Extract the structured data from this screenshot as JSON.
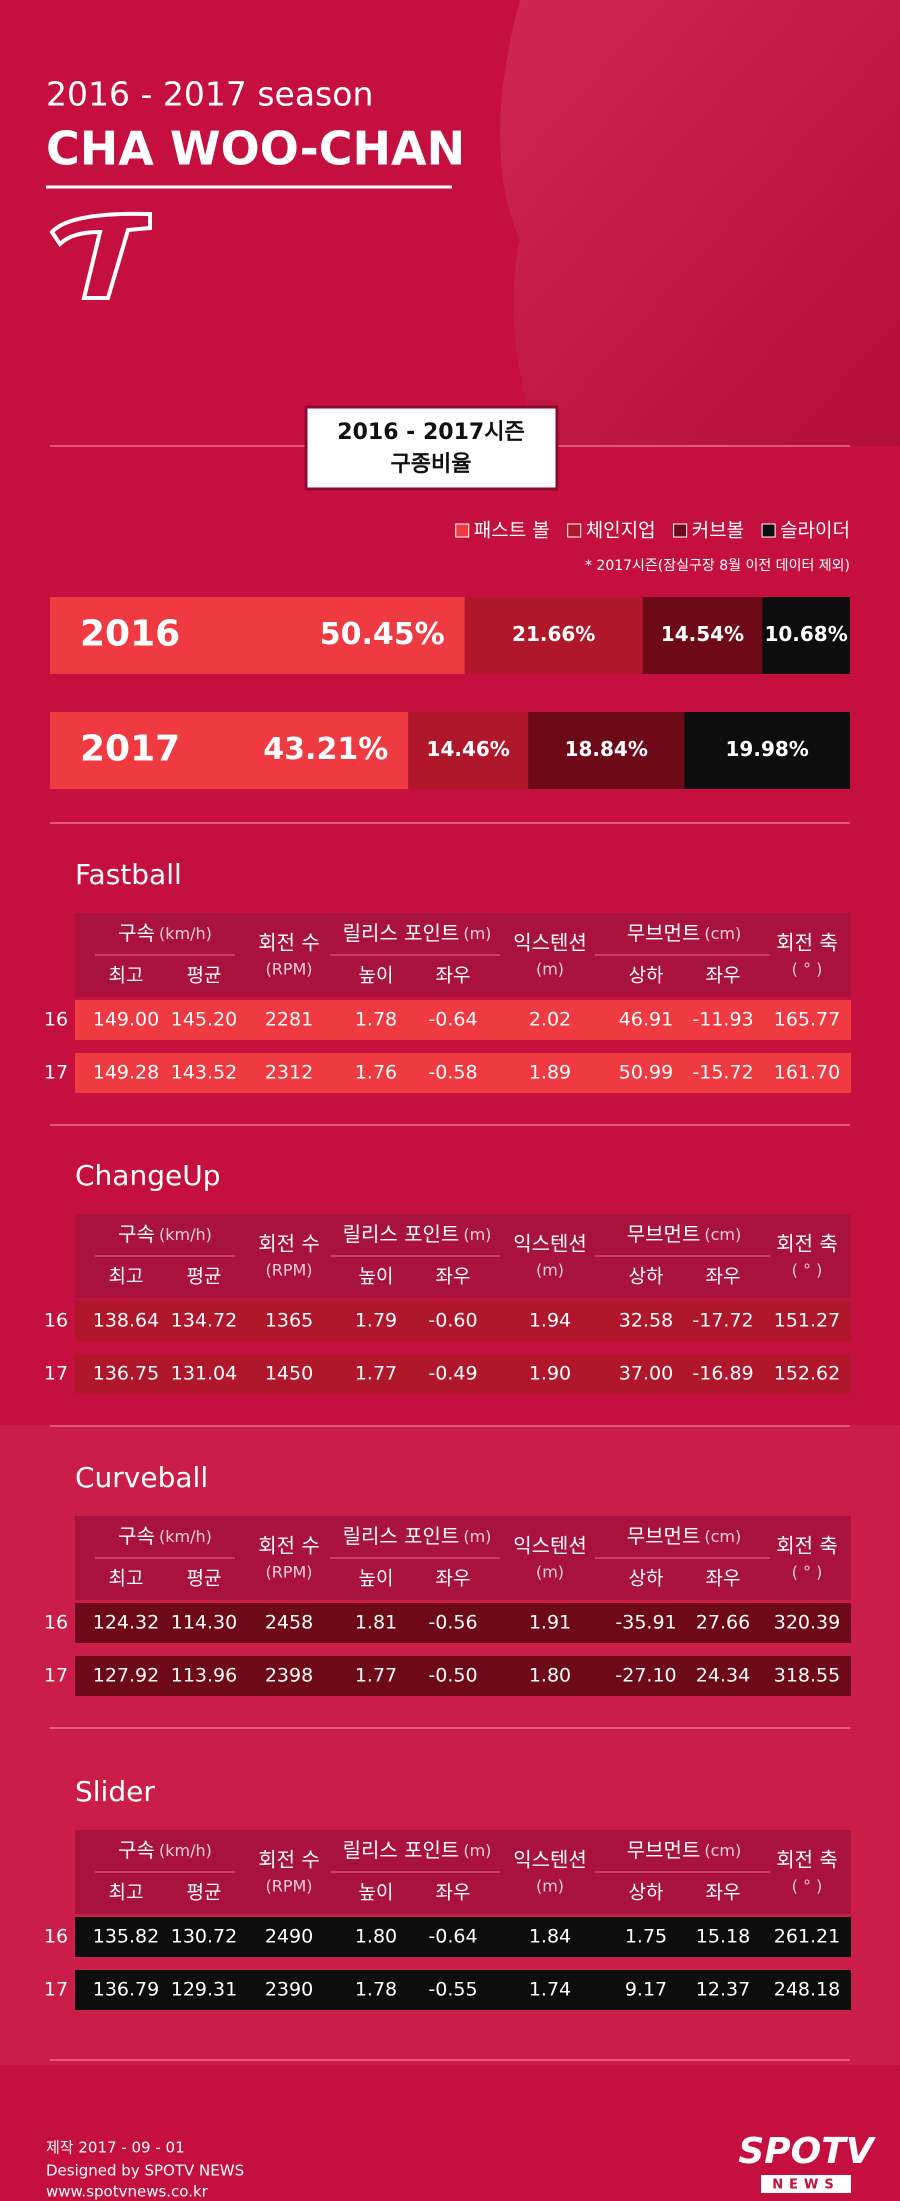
{
  "header": {
    "season": "2016 - 2017 season",
    "player": "CHA WOO-CHAN"
  },
  "pitch_mix": {
    "title": [
      "2016 - 2017시즌",
      "구종비율"
    ],
    "legend": [
      {
        "name": "패스트 볼",
        "color": "#f03a41"
      },
      {
        "name": "체인지업",
        "color": "#b0172b"
      },
      {
        "name": "커브볼",
        "color": "#6e0a18"
      },
      {
        "name": "슬라이더",
        "color": "#0d0d0d"
      }
    ],
    "note": "* 2017시즌(잠실구장 8월 이전 데이터 제외)",
    "rows": [
      {
        "year": "2016",
        "values": [
          50.45,
          21.66,
          14.54,
          10.68
        ],
        "value_labels": [
          "50.45%",
          "21.66%",
          "14.54%",
          "10.68%"
        ]
      },
      {
        "year": "2017",
        "values": [
          43.21,
          14.46,
          18.84,
          19.98
        ],
        "value_labels": [
          "43.21%",
          "14.46%",
          "18.84%",
          "19.98%"
        ]
      }
    ]
  },
  "table_header": {
    "speed": "구속",
    "speed_unit": "(km/h)",
    "max": "최고",
    "avg": "평균",
    "spin": "회전 수",
    "spin_unit": "(RPM)",
    "release": "릴리스 포인트",
    "release_unit": "(m)",
    "height": "높이",
    "side": "좌우",
    "extension": "익스텐션",
    "extension_unit": "(m)",
    "movement": "무브먼트",
    "movement_unit": "(cm)",
    "vertical": "상하",
    "horizontal": "좌우",
    "axis": "회전 축",
    "axis_unit": "( ° )"
  },
  "pitches": [
    {
      "name": "Fastball",
      "color": "#f03a41",
      "rows": [
        {
          "season": "16",
          "cells": [
            "149.00",
            "145.20",
            "2281",
            "1.78",
            "-0.64",
            "2.02",
            "46.91",
            "-11.93",
            "165.77"
          ]
        },
        {
          "season": "17",
          "cells": [
            "149.28",
            "143.52",
            "2312",
            "1.76",
            "-0.58",
            "1.89",
            "50.99",
            "-15.72",
            "161.70"
          ]
        }
      ]
    },
    {
      "name": "ChangeUp",
      "color": "#b0172b",
      "rows": [
        {
          "season": "16",
          "cells": [
            "138.64",
            "134.72",
            "1365",
            "1.79",
            "-0.60",
            "1.94",
            "32.58",
            "-17.72",
            "151.27"
          ]
        },
        {
          "season": "17",
          "cells": [
            "136.75",
            "131.04",
            "1450",
            "1.77",
            "-0.49",
            "1.90",
            "37.00",
            "-16.89",
            "152.62"
          ]
        }
      ]
    },
    {
      "name": "Curveball",
      "color": "#6e0a18",
      "rows": [
        {
          "season": "16",
          "cells": [
            "124.32",
            "114.30",
            "2458",
            "1.81",
            "-0.56",
            "1.91",
            "-35.91",
            "27.66",
            "320.39"
          ]
        },
        {
          "season": "17",
          "cells": [
            "127.92",
            "113.96",
            "2398",
            "1.77",
            "-0.50",
            "1.80",
            "-27.10",
            "24.34",
            "318.55"
          ]
        }
      ]
    },
    {
      "name": "Slider",
      "color": "#0d0d0d",
      "rows": [
        {
          "season": "16",
          "cells": [
            "135.82",
            "130.72",
            "2490",
            "1.80",
            "-0.64",
            "1.84",
            "1.75",
            "15.18",
            "261.21"
          ]
        },
        {
          "season": "17",
          "cells": [
            "136.79",
            "129.31",
            "2390",
            "1.78",
            "-0.55",
            "1.74",
            "9.17",
            "12.37",
            "248.18"
          ]
        }
      ]
    }
  ],
  "footer": {
    "date": "제작 2017 - 09 - 01",
    "designer": "Designed by SPOTV NEWS",
    "url": "www.spotvnews.co.kr",
    "logo": "SPOTV",
    "logo_sub": "NEWS"
  }
}
